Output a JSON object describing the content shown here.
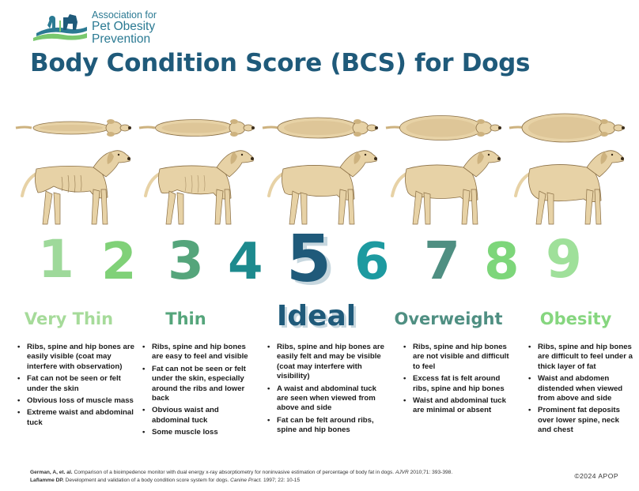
{
  "org": {
    "line1": "Association for",
    "line2": "Pet Obesity",
    "line3": "Prevention"
  },
  "title": "Body Condition Score (BCS) for Dogs",
  "scores": [
    {
      "n": "1",
      "color": "#9ed99a"
    },
    {
      "n": "2",
      "color": "#80d178"
    },
    {
      "n": "3",
      "color": "#55a57b"
    },
    {
      "n": "4",
      "color": "#1d8a8e"
    },
    {
      "n": "5",
      "color": "#1f5a7a"
    },
    {
      "n": "6",
      "color": "#1d9aa0"
    },
    {
      "n": "7",
      "color": "#4f8f82"
    },
    {
      "n": "8",
      "color": "#7dd67a"
    },
    {
      "n": "9",
      "color": "#9fe09a"
    }
  ],
  "categories": [
    {
      "label": "Very Thin",
      "color": "#a6db9a",
      "bullets": [
        "Ribs, spine and hip bones are easily visible (coat may interfere with observation)",
        "Fat can not be seen or felt under the skin",
        "Obvious loss of muscle mass",
        "Extreme waist and abdominal tuck"
      ]
    },
    {
      "label": "Thin",
      "color": "#55a57b",
      "bullets": [
        "Ribs, spine and hip bones are easy to feel and visible",
        "Fat can not be seen or felt under the skin, especially around the ribs and lower back",
        "Obvious waist and abdominal tuck",
        "Some muscle loss"
      ]
    },
    {
      "label": "Ideal",
      "color": "#1f5a7a",
      "bullets": [
        "Ribs, spine and hip bones are easily felt and may be visible (coat may interfere with visibility)",
        "A waist and abdominal tuck are seen when viewed from above and side",
        "Fat can be felt around ribs, spine and hip bones"
      ]
    },
    {
      "label": "Overweight",
      "color": "#4f8f82",
      "bullets": [
        "Ribs, spine and hip bones are not visible and difficult to feel",
        "Excess fat is felt around ribs, spine and hip bones",
        "Waist and abdominal tuck are minimal or absent"
      ]
    },
    {
      "label": "Obesity",
      "color": "#86d67f",
      "bullets": [
        "Ribs, spine and hip bones are difficult to feel under a thick layer of fat",
        "Waist and abdomen distended when viewed from above and side",
        "Prominent fat deposits over lower spine, neck and chest"
      ]
    }
  ],
  "references": {
    "r1_author": "German, A, et. al.",
    "r1_text": " Comparison of a bioimpedence monitor with dual energy x-ray absorptiometry for noninvasive estimation of percentage of body fat in dogs. ",
    "r1_journal": "AJVR",
    "r1_tail": " 2010;71: 393-398.",
    "r2_author": "Laflamme DP.",
    "r2_text": " Development and validation of a body condition score system for dogs. ",
    "r2_journal": "Canine Pract.",
    "r2_tail": " 1997; 22: 10-15"
  },
  "copyright": "©2024 APOP"
}
